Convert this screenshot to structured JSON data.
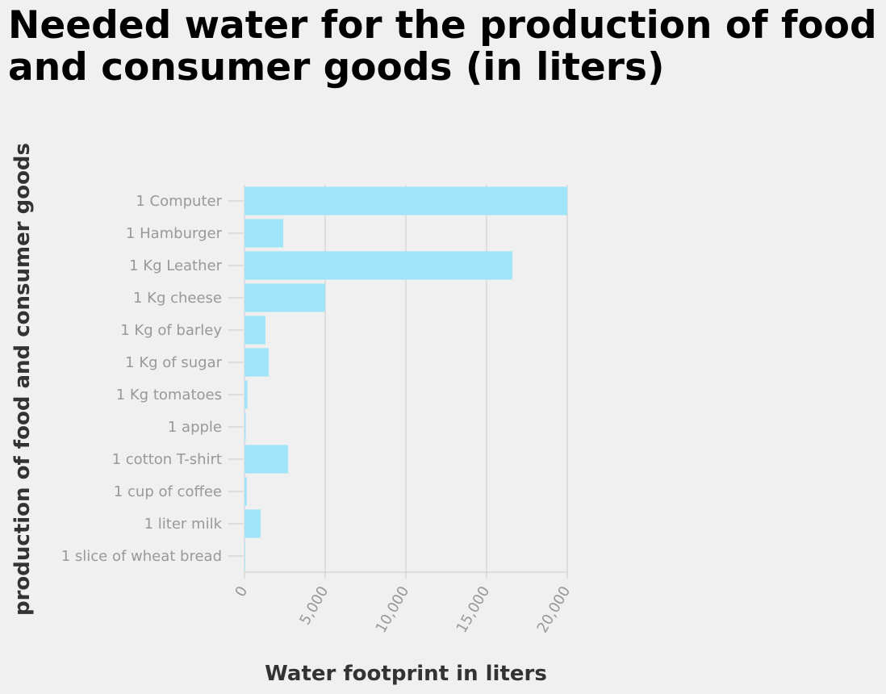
{
  "colors": {
    "bar": "#a0e4fa",
    "grid": "#cccccc",
    "tick_text": "#999999",
    "axis_title": "#333333",
    "background": "#f0f0f0"
  },
  "chart_data": {
    "type": "bar",
    "orientation": "horizontal",
    "title": "Needed water for the production of food and consumer goods (in liters)",
    "xlabel": "Water footprint in liters",
    "ylabel": "production of food and consumer goods",
    "xlim": [
      0,
      20000
    ],
    "xticks": [
      0,
      5000,
      10000,
      15000,
      20000
    ],
    "xtick_labels": [
      "0",
      "5,000",
      "10,000",
      "15,000",
      "20,000"
    ],
    "grid": true,
    "categories": [
      "1 Computer",
      "1 Hamburger",
      "1 Kg Leather",
      "1 Kg cheese",
      "1 Kg of barley",
      "1 Kg of sugar",
      "1 Kg tomatoes",
      "1 apple",
      "1 cotton T-shirt",
      "1 cup of coffee",
      "1 liter milk",
      "1 slice of wheat bread"
    ],
    "values": [
      20000,
      2400,
      16600,
      5000,
      1300,
      1500,
      180,
      70,
      2700,
      140,
      1000,
      40
    ]
  }
}
